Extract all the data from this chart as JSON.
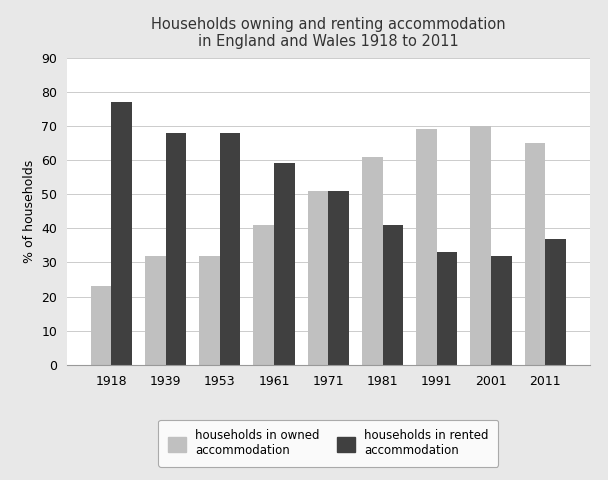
{
  "title": "Households owning and renting accommodation\nin England and Wales 1918 to 2011",
  "ylabel": "% of households",
  "years": [
    "1918",
    "1939",
    "1953",
    "1961",
    "1971",
    "1981",
    "1991",
    "2001",
    "2011"
  ],
  "owned": [
    23,
    32,
    32,
    41,
    51,
    61,
    69,
    70,
    65
  ],
  "rented": [
    77,
    68,
    68,
    59,
    51,
    41,
    33,
    32,
    37
  ],
  "owned_color": "#c0c0c0",
  "rented_color": "#404040",
  "ylim": [
    0,
    90
  ],
  "yticks": [
    0,
    10,
    20,
    30,
    40,
    50,
    60,
    70,
    80,
    90
  ],
  "legend_owned": "households in owned\naccommodation",
  "legend_rented": "households in rented\naccommodation",
  "bar_width": 0.38,
  "title_fontsize": 10.5,
  "axis_fontsize": 9,
  "tick_fontsize": 9,
  "legend_fontsize": 8.5,
  "fig_background": "#e8e8e8",
  "plot_background": "#ffffff"
}
